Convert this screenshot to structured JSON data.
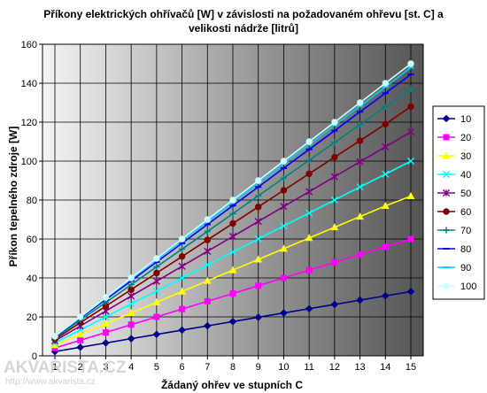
{
  "chart_data": {
    "type": "line",
    "title_lines": [
      "Příkony elektrických ohřívačů [W] v závislosti na požadovaném ohřevu [st. C] a",
      "velikosti nádrže [litrů]"
    ],
    "xlabel": "Žádaný ohřev ve stupních C",
    "ylabel": "Příkon tepelného zdroje [W]",
    "x": [
      1,
      2,
      3,
      4,
      5,
      6,
      7,
      8,
      9,
      10,
      11,
      12,
      13,
      14,
      15
    ],
    "xlim": [
      1,
      15
    ],
    "ylim": [
      0,
      160
    ],
    "yticks": [
      0,
      20,
      40,
      60,
      80,
      100,
      120,
      140,
      160
    ],
    "grid": true,
    "legend_position": "right",
    "series": [
      {
        "name": "10",
        "color": "#00008b",
        "marker": "diamond",
        "values": [
          2.2,
          4.4,
          6.6,
          8.8,
          11,
          13.2,
          15.4,
          17.6,
          19.8,
          22,
          24.2,
          26.4,
          28.6,
          30.8,
          33
        ]
      },
      {
        "name": "20",
        "color": "#ff00ff",
        "marker": "square",
        "values": [
          4,
          8,
          12,
          16,
          20,
          24,
          28,
          32,
          36,
          40,
          44,
          48,
          52,
          56,
          60
        ]
      },
      {
        "name": "30",
        "color": "#ffff00",
        "marker": "triangle",
        "values": [
          5.5,
          11,
          16.5,
          22,
          27.5,
          33,
          38.5,
          44,
          49.5,
          55,
          60.5,
          66,
          71.5,
          77,
          82
        ]
      },
      {
        "name": "40",
        "color": "#00ffff",
        "marker": "x",
        "values": [
          6.7,
          13.3,
          20,
          26.7,
          33.3,
          40,
          46.7,
          53.3,
          60,
          66.7,
          73.3,
          80,
          86.7,
          93.3,
          100
        ]
      },
      {
        "name": "50",
        "color": "#800080",
        "marker": "star",
        "values": [
          7.7,
          15.3,
          23,
          30.7,
          38.3,
          46,
          53.7,
          61.3,
          69,
          76.7,
          84.3,
          92,
          99.7,
          107.3,
          115
        ]
      },
      {
        "name": "60",
        "color": "#800000",
        "marker": "circle",
        "values": [
          8.5,
          17,
          25.5,
          34,
          42.5,
          51,
          59.5,
          68,
          76.5,
          85,
          93.5,
          102,
          110.5,
          119,
          128
        ]
      },
      {
        "name": "70",
        "color": "#008080",
        "marker": "plus",
        "values": [
          9.1,
          18.3,
          27.4,
          36.5,
          45.7,
          54.8,
          63.9,
          73,
          82.2,
          91.3,
          100.4,
          109.6,
          118.7,
          127.8,
          137
        ]
      },
      {
        "name": "80",
        "color": "#0000ff",
        "marker": "dash",
        "values": [
          9.6,
          19.3,
          28.9,
          38.5,
          48.2,
          57.8,
          67.5,
          77.1,
          86.7,
          96.4,
          106,
          115.6,
          125.3,
          134.9,
          144.5
        ]
      },
      {
        "name": "90",
        "color": "#00ccff",
        "marker": "dash",
        "values": [
          9.9,
          19.7,
          29.6,
          39.5,
          49.3,
          59.2,
          69,
          78.9,
          88.8,
          98.6,
          108.5,
          118.4,
          128.2,
          138.1,
          148
        ]
      },
      {
        "name": "100",
        "color": "#ccffff",
        "marker": "circle",
        "values": [
          10,
          20,
          30,
          40,
          50,
          60,
          70,
          80,
          90,
          100,
          110,
          120,
          130,
          140,
          150
        ]
      }
    ]
  },
  "watermark": {
    "brand": "AKVARISTA.CZ",
    "url": "http://www.akvarista.cz"
  }
}
